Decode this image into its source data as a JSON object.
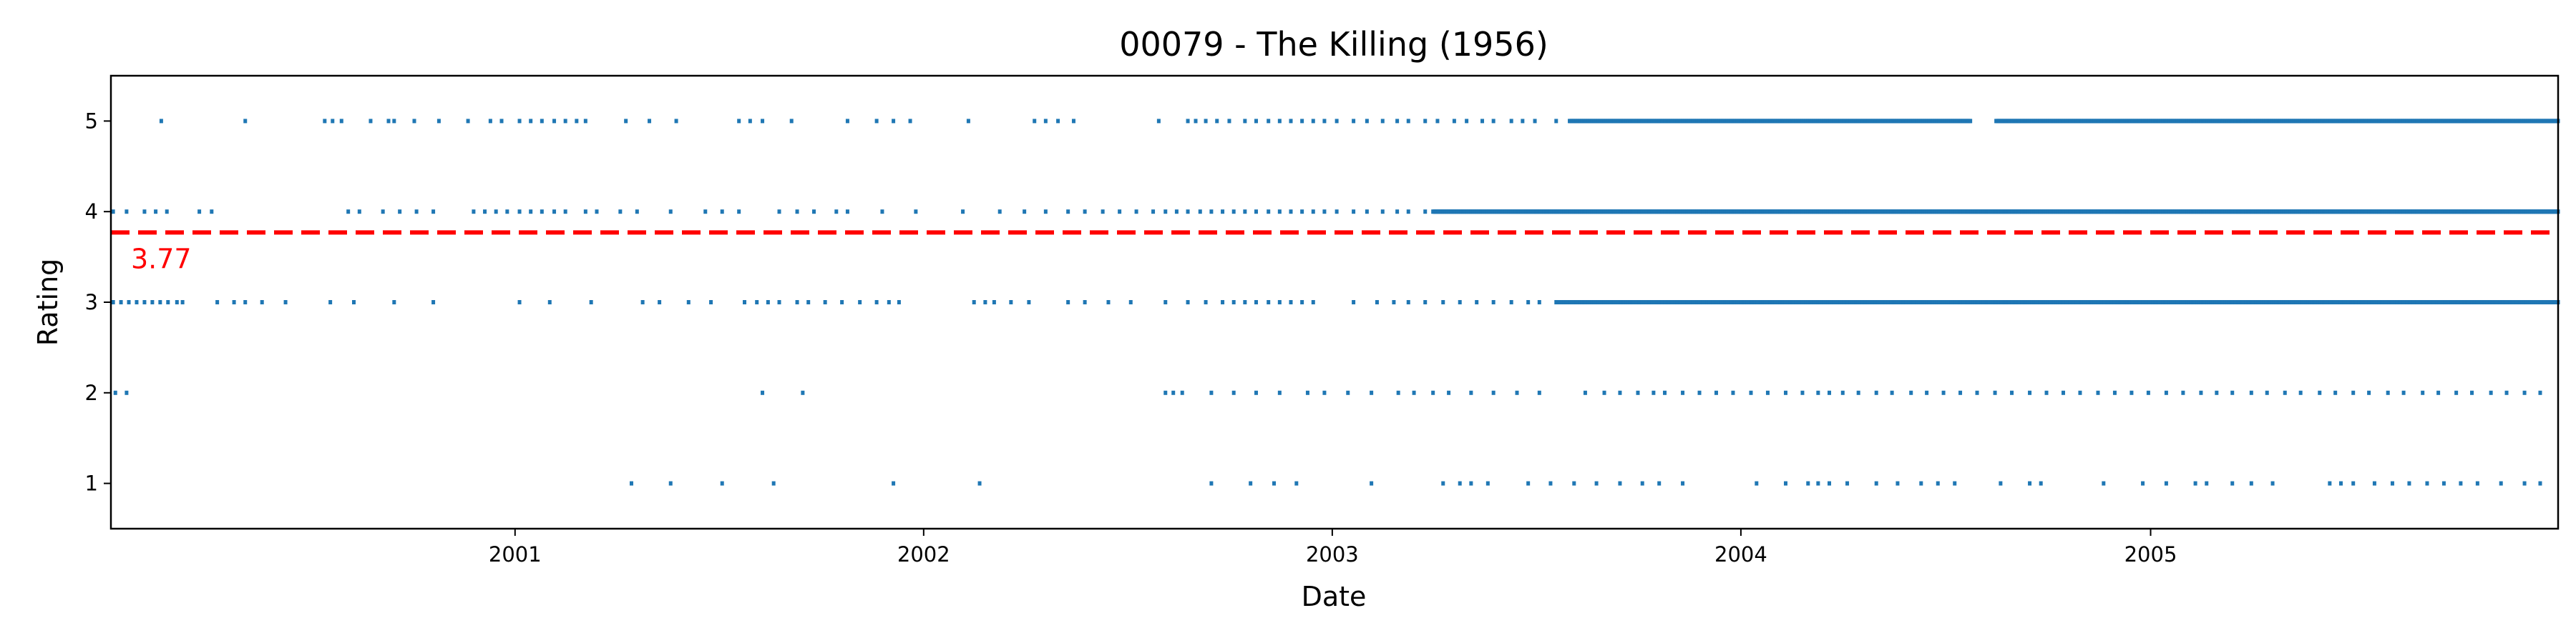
{
  "chart_data": {
    "type": "scatter",
    "title": "00079 - The Killing (1956)",
    "xlabel": "Date",
    "ylabel": "Rating",
    "xlim": [
      "2000-01-06",
      "2005-12-31"
    ],
    "ylim": [
      0.5,
      5.5
    ],
    "x_ticks": [
      {
        "date": "2001-01-01",
        "label": "2001"
      },
      {
        "date": "2002-01-01",
        "label": "2002"
      },
      {
        "date": "2003-01-01",
        "label": "2003"
      },
      {
        "date": "2004-01-01",
        "label": "2004"
      },
      {
        "date": "2005-01-01",
        "label": "2005"
      }
    ],
    "y_ticks": [
      1,
      2,
      3,
      4,
      5
    ],
    "grid": false,
    "legend": "none",
    "point_color": "#1f77b4",
    "mean_line": {
      "value": 3.77,
      "label": "3.77",
      "color": "#ff0000",
      "style": "dashed"
    },
    "series": [
      {
        "rating": 5,
        "dense_from": "2003-08-01",
        "dates": [
          "2000-02-20",
          "2000-05-05",
          "2000-07-15",
          "2000-07-22",
          "2000-07-30",
          "2000-08-25",
          "2000-09-10",
          "2000-09-15",
          "2000-10-03",
          "2000-10-25",
          "2000-11-20",
          "2000-12-10",
          "2000-12-20",
          "2001-01-05",
          "2001-01-15",
          "2001-01-25",
          "2001-02-05",
          "2001-02-15",
          "2001-02-25",
          "2001-03-05",
          "2001-04-10",
          "2001-05-01",
          "2001-05-25",
          "2001-07-20",
          "2001-07-30",
          "2001-08-10",
          "2001-09-05",
          "2001-10-25",
          "2001-11-20",
          "2001-12-05",
          "2001-12-20",
          "2002-02-10",
          "2002-04-10",
          "2002-04-20",
          "2002-05-01",
          "2002-05-15",
          "2002-07-30",
          "2002-08-25",
          "2002-09-01",
          "2002-09-10",
          "2002-09-20",
          "2002-10-01",
          "2002-10-15",
          "2002-10-25",
          "2002-11-05",
          "2002-11-15",
          "2002-11-25",
          "2002-12-05",
          "2002-12-15",
          "2002-12-25",
          "2003-01-05",
          "2003-01-20",
          "2003-02-01",
          "2003-02-15",
          "2003-02-28",
          "2003-03-10",
          "2003-03-25",
          "2003-04-05",
          "2003-04-20",
          "2003-05-01",
          "2003-05-15",
          "2003-05-25",
          "2003-06-10",
          "2003-06-20",
          "2003-07-01",
          "2003-07-20"
        ],
        "gaps": [
          [
            "2004-07-25",
            "2004-08-15"
          ]
        ]
      },
      {
        "rating": 4,
        "dense_from": "2003-04-01",
        "dates": [
          "2000-01-08",
          "2000-01-20",
          "2000-02-05",
          "2000-02-15",
          "2000-02-25",
          "2000-03-25",
          "2000-04-05",
          "2000-08-05",
          "2000-08-15",
          "2000-09-05",
          "2000-09-20",
          "2000-10-05",
          "2000-10-20",
          "2000-11-25",
          "2000-12-05",
          "2000-12-15",
          "2000-12-25",
          "2001-01-05",
          "2001-01-15",
          "2001-01-25",
          "2001-02-05",
          "2001-02-15",
          "2001-03-05",
          "2001-03-15",
          "2001-04-05",
          "2001-04-20",
          "2001-05-20",
          "2001-06-20",
          "2001-07-05",
          "2001-07-20",
          "2001-08-25",
          "2001-09-10",
          "2001-09-25",
          "2001-10-15",
          "2001-10-25",
          "2001-11-25",
          "2001-12-25",
          "2002-02-05",
          "2002-03-10",
          "2002-04-01",
          "2002-04-20",
          "2002-05-10",
          "2002-05-25",
          "2002-06-10",
          "2002-06-25",
          "2002-07-10",
          "2002-07-25",
          "2002-08-05",
          "2002-08-15",
          "2002-08-25",
          "2002-09-05",
          "2002-09-15",
          "2002-09-25",
          "2002-10-05",
          "2002-10-15",
          "2002-10-25",
          "2002-11-05",
          "2002-11-15",
          "2002-11-25",
          "2002-12-05",
          "2002-12-15",
          "2002-12-25",
          "2003-01-05",
          "2003-01-20",
          "2003-02-01",
          "2003-02-15",
          "2003-02-28",
          "2003-03-10",
          "2003-03-25"
        ],
        "gaps": []
      },
      {
        "rating": 3,
        "dense_from": "2003-07-20",
        "dates": [
          "2000-01-08",
          "2000-01-15",
          "2000-01-22",
          "2000-01-29",
          "2000-02-05",
          "2000-02-12",
          "2000-02-19",
          "2000-02-26",
          "2000-03-05",
          "2000-03-10",
          "2000-04-10",
          "2000-04-25",
          "2000-05-05",
          "2000-05-20",
          "2000-06-10",
          "2000-07-20",
          "2000-08-10",
          "2000-09-15",
          "2000-10-20",
          "2001-01-05",
          "2001-02-01",
          "2001-03-10",
          "2001-04-25",
          "2001-05-10",
          "2001-06-05",
          "2001-06-25",
          "2001-07-25",
          "2001-08-05",
          "2001-08-15",
          "2001-08-25",
          "2001-09-10",
          "2001-09-20",
          "2001-10-05",
          "2001-10-20",
          "2001-11-05",
          "2001-11-20",
          "2001-12-01",
          "2001-12-10",
          "2002-02-15",
          "2002-02-25",
          "2002-03-05",
          "2002-03-20",
          "2002-04-05",
          "2002-05-10",
          "2002-05-25",
          "2002-06-15",
          "2002-07-05",
          "2002-08-05",
          "2002-08-25",
          "2002-09-10",
          "2002-09-25",
          "2002-10-05",
          "2002-10-15",
          "2002-10-25",
          "2002-11-05",
          "2002-11-15",
          "2002-11-25",
          "2002-12-05",
          "2002-12-15",
          "2003-01-20",
          "2003-02-10",
          "2003-02-25",
          "2003-03-10",
          "2003-03-25",
          "2003-04-10",
          "2003-04-25",
          "2003-05-10",
          "2003-05-25",
          "2003-06-10",
          "2003-06-25",
          "2003-07-05"
        ],
        "gaps": []
      },
      {
        "rating": 2,
        "dense_from": null,
        "dates": [
          "2000-01-10",
          "2000-01-20",
          "2001-08-10",
          "2001-09-15",
          "2002-08-05",
          "2002-08-12",
          "2002-08-20",
          "2002-09-15",
          "2002-10-05",
          "2002-10-25",
          "2002-11-15",
          "2002-12-10",
          "2002-12-25",
          "2003-01-15",
          "2003-02-05",
          "2003-03-01",
          "2003-03-15",
          "2003-04-01",
          "2003-04-15",
          "2003-05-05",
          "2003-05-25",
          "2003-06-15",
          "2003-07-05",
          "2003-08-15",
          "2003-09-01",
          "2003-09-15",
          "2003-10-01",
          "2003-10-15",
          "2003-10-25",
          "2003-11-10",
          "2003-11-25",
          "2003-12-10",
          "2003-12-25",
          "2004-01-10",
          "2004-01-25",
          "2004-02-10",
          "2004-02-25",
          "2004-03-10",
          "2004-03-20",
          "2004-04-01",
          "2004-04-15",
          "2004-05-01",
          "2004-05-15",
          "2004-06-01",
          "2004-06-15",
          "2004-06-30",
          "2004-07-15",
          "2004-07-30",
          "2004-08-15",
          "2004-08-30",
          "2004-09-15",
          "2004-09-30",
          "2004-10-15",
          "2004-10-30",
          "2004-11-15",
          "2004-11-30",
          "2004-12-15",
          "2004-12-30",
          "2005-01-15",
          "2005-01-30",
          "2005-02-15",
          "2005-03-01",
          "2005-03-15",
          "2005-04-01",
          "2005-04-15",
          "2005-05-01",
          "2005-05-15",
          "2005-06-01",
          "2005-06-15",
          "2005-07-01",
          "2005-07-15",
          "2005-08-01",
          "2005-08-15",
          "2005-09-01",
          "2005-09-15",
          "2005-10-01",
          "2005-10-15",
          "2005-11-01",
          "2005-11-15",
          "2005-12-01",
          "2005-12-15"
        ]
      },
      {
        "rating": 1,
        "dense_from": null,
        "dates": [
          "2001-04-15",
          "2001-05-20",
          "2001-07-05",
          "2001-08-20",
          "2001-12-05",
          "2002-02-20",
          "2002-09-15",
          "2002-10-20",
          "2002-11-10",
          "2002-11-30",
          "2003-02-05",
          "2003-04-10",
          "2003-04-25",
          "2003-05-05",
          "2003-05-20",
          "2003-06-25",
          "2003-07-15",
          "2003-08-05",
          "2003-08-25",
          "2003-09-15",
          "2003-10-05",
          "2003-10-20",
          "2003-11-10",
          "2004-01-15",
          "2004-02-10",
          "2004-03-01",
          "2004-03-10",
          "2004-03-20",
          "2004-04-05",
          "2004-05-01",
          "2004-05-20",
          "2004-06-10",
          "2004-06-25",
          "2004-07-10",
          "2004-08-20",
          "2004-09-15",
          "2004-09-25",
          "2004-11-20",
          "2004-12-25",
          "2005-01-15",
          "2005-02-10",
          "2005-02-20",
          "2005-03-15",
          "2005-04-01",
          "2005-04-20",
          "2005-06-10",
          "2005-06-20",
          "2005-07-01",
          "2005-07-20",
          "2005-08-05",
          "2005-08-20",
          "2005-09-05",
          "2005-09-20",
          "2005-10-05",
          "2005-10-20",
          "2005-11-10",
          "2005-12-01",
          "2005-12-15"
        ]
      }
    ]
  }
}
